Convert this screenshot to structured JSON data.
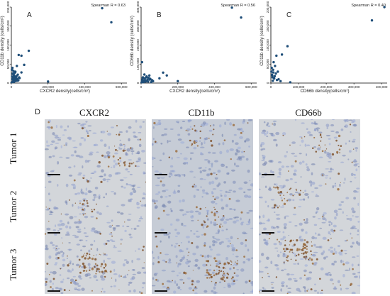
{
  "figure": {
    "scatter_panels": [
      {
        "letter": "A",
        "spearman": "Spearman R = 0.63",
        "xlabel": "CXCR2 density(cells/cm²)",
        "ylabel": "CD11b density (cells/cm²)",
        "xticks": [
          "0",
          "200,000",
          "400,000",
          "600,000"
        ],
        "yticks": [
          "0",
          "50,000",
          "100,000",
          "150,000",
          "200,000"
        ]
      },
      {
        "letter": "B",
        "spearman": "Spearman R = 0.56",
        "xlabel": "CXCR2 density(cells/cm²)",
        "ylabel": "CD66b density (cells/cm²)",
        "xticks": [
          "0",
          "200,000",
          "400,000",
          "600,000"
        ],
        "yticks": [
          "0",
          "100,000",
          "200,000",
          "300,000",
          "400,000"
        ]
      },
      {
        "letter": "C",
        "spearman": "Spearman R = 0.40",
        "xlabel": "CD66b density(cells/cm²)",
        "ylabel": "CD11b density (cells/cm²)",
        "xticks": [
          "0",
          "100,000",
          "200,000",
          "300,000",
          "400,000"
        ],
        "yticks": [
          "0",
          "50,000",
          "100,000",
          "150,000",
          "200,000"
        ]
      }
    ],
    "ihc": {
      "letter": "D",
      "columns": [
        "CXCR2",
        "CD11b",
        "CD66b"
      ],
      "rows": [
        "Tumor 1",
        "Tumor 2",
        "Tumor 3"
      ]
    }
  },
  "chart_data": [
    {
      "type": "scatter",
      "title": "",
      "xlabel": "CXCR2 density(cells/cm²)",
      "ylabel": "CD11b density (cells/cm²)",
      "xlim": [
        0,
        630000
      ],
      "ylim": [
        0,
        200000
      ],
      "annotation": "Spearman R = 0.63",
      "x": [
        495000,
        545000,
        95000,
        40000,
        55000,
        70000,
        30000,
        55000,
        200000,
        5000,
        8000,
        12000,
        15000,
        18000,
        20000,
        22000,
        25000,
        28000,
        30000,
        35000,
        3000,
        6000,
        10000,
        14000,
        17000,
        21000,
        24000,
        32000,
        38000,
        45000,
        2000,
        4000,
        7000,
        9000,
        11000,
        13000,
        16000,
        19000,
        26000,
        42000
      ],
      "y": [
        197000,
        160000,
        85000,
        74000,
        72000,
        48000,
        45000,
        28000,
        4000,
        10000,
        25000,
        8000,
        20000,
        15000,
        5000,
        30000,
        12000,
        18000,
        6000,
        22000,
        35000,
        40000,
        14000,
        3000,
        9000,
        28000,
        16000,
        11000,
        7000,
        13000,
        2000,
        17000,
        24000,
        4000,
        32000,
        19000,
        26000,
        10000,
        8000,
        15000
      ]
    },
    {
      "type": "scatter",
      "title": "",
      "xlabel": "CXCR2 density(cells/cm²)",
      "ylabel": "CD66b density (cells/cm²)",
      "xlim": [
        0,
        630000
      ],
      "ylim": [
        0,
        400000
      ],
      "annotation": "Spearman R = 0.56",
      "x": [
        495000,
        545000,
        5000,
        120000,
        140000,
        100000,
        200000,
        30000,
        40000,
        50000,
        60000,
        10000,
        15000,
        20000,
        25000,
        35000,
        45000,
        55000,
        65000,
        8000,
        12000,
        18000,
        22000,
        28000,
        32000,
        38000,
        42000,
        48000,
        3000,
        6000,
        9000,
        14000
      ],
      "y": [
        397000,
        345000,
        110000,
        55000,
        40000,
        25000,
        10000,
        35000,
        28000,
        22000,
        15000,
        30000,
        12000,
        25000,
        8000,
        18000,
        40000,
        5000,
        10000,
        20000,
        5000,
        45000,
        15000,
        30000,
        12000,
        8000,
        25000,
        18000,
        4000,
        14000,
        28000,
        6000
      ]
    },
    {
      "type": "scatter",
      "title": "",
      "xlabel": "CD66b density(cells/cm²)",
      "ylabel": "CD11b density (cells/cm²)",
      "xlim": [
        0,
        420000
      ],
      "ylim": [
        0,
        200000
      ],
      "annotation": "Spearman R = 0.40",
      "x": [
        410000,
        365000,
        60000,
        40000,
        20000,
        10000,
        15000,
        25000,
        5000,
        8000,
        12000,
        18000,
        22000,
        3000,
        6000,
        9000,
        14000,
        28000,
        35000,
        70000,
        2000,
        4000,
        7000,
        11000
      ],
      "y": [
        200000,
        165000,
        97000,
        75000,
        72000,
        55000,
        45000,
        30000,
        20000,
        35000,
        12000,
        25000,
        8000,
        40000,
        15000,
        28000,
        18000,
        10000,
        5000,
        2000,
        30000,
        22000,
        6000,
        14000
      ]
    }
  ]
}
